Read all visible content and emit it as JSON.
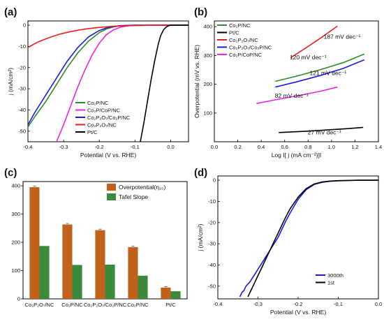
{
  "colors": {
    "green": "#2e8b2e",
    "magenta": "#ee22ee",
    "blue": "#1a1ae6",
    "red": "#ee1c1c",
    "black": "#000000",
    "bar_over": "#c1611b",
    "bar_tafel": "#3b8a3b"
  },
  "chart_data": [
    {
      "id": "a",
      "type": "line",
      "panel_label": "(a)",
      "xlabel": "Potential (V vs. RHE)",
      "ylabel": "j (mA/cm²)",
      "xlim": [
        -0.4,
        0.05
      ],
      "ylim": [
        -55,
        2
      ],
      "xticks": [
        -0.4,
        -0.3,
        -0.2,
        -0.1,
        0.0
      ],
      "xtick_labels": [
        "-0.4",
        "-0.3",
        "-0.2",
        "-0.1",
        "0.0"
      ],
      "yticks": [
        0,
        -10,
        -20,
        -30,
        -40,
        -50
      ],
      "ytick_labels": [
        "0",
        "-10",
        "-20",
        "-30",
        "-40",
        "-50"
      ],
      "legend_position": "bottom-right",
      "series": [
        {
          "name": "Co₂P/NC",
          "color": "green",
          "x": [
            -0.4,
            -0.38,
            -0.35,
            -0.32,
            -0.29,
            -0.26,
            -0.23,
            -0.2,
            -0.18,
            -0.16,
            -0.14,
            -0.12,
            -0.1,
            -0.08,
            -0.05,
            0.0,
            0.05
          ],
          "y": [
            -48,
            -43,
            -36,
            -28,
            -20,
            -13,
            -7.5,
            -3.5,
            -1.8,
            -0.8,
            -0.3,
            -0.1,
            0,
            0,
            0,
            0,
            0
          ]
        },
        {
          "name": "Co₂P/CoP/NC",
          "color": "magenta",
          "x": [
            -0.32,
            -0.3,
            -0.28,
            -0.26,
            -0.24,
            -0.22,
            -0.2,
            -0.18,
            -0.16,
            -0.14,
            -0.12,
            -0.1,
            -0.05,
            0.0,
            0.05
          ],
          "y": [
            -55,
            -47,
            -38,
            -29,
            -21,
            -14,
            -8.5,
            -4.5,
            -2.2,
            -0.9,
            -0.3,
            -0.1,
            0,
            0,
            0
          ]
        },
        {
          "name": "Co₂P₂O₇/Co₂P/NC",
          "color": "blue",
          "x": [
            -0.4,
            -0.38,
            -0.35,
            -0.32,
            -0.29,
            -0.26,
            -0.23,
            -0.2,
            -0.18,
            -0.16,
            -0.14,
            -0.12,
            -0.1,
            -0.05,
            0.0,
            0.05
          ],
          "y": [
            -47,
            -41,
            -33,
            -25,
            -17,
            -10.5,
            -5.5,
            -2.5,
            -1.3,
            -0.6,
            -0.2,
            -0.1,
            0,
            0,
            0,
            0
          ]
        },
        {
          "name": "Co₂P₂O₇/NC",
          "color": "red",
          "x": [
            -0.4,
            -0.37,
            -0.34,
            -0.31,
            -0.28,
            -0.25,
            -0.22,
            -0.19,
            -0.16,
            -0.13,
            -0.1,
            -0.07,
            -0.04,
            0.0,
            0.05
          ],
          "y": [
            -10.5,
            -7.8,
            -5.8,
            -4.2,
            -3.0,
            -2.1,
            -1.4,
            -0.9,
            -0.5,
            -0.3,
            -0.15,
            -0.05,
            0,
            0,
            0
          ]
        },
        {
          "name": "Pt/C",
          "color": "black",
          "x": [
            -0.085,
            -0.075,
            -0.065,
            -0.055,
            -0.045,
            -0.035,
            -0.028,
            -0.02,
            -0.012,
            -0.005,
            0.0,
            0.05
          ],
          "y": [
            -55,
            -46,
            -36,
            -26,
            -17,
            -9,
            -5,
            -2.2,
            -0.8,
            -0.2,
            0,
            0
          ]
        }
      ]
    },
    {
      "id": "b",
      "type": "line",
      "panel_label": "(b)",
      "xlabel": "Log I[ j (mA cm⁻²)]I",
      "ylabel": "Overpotential (mV vs. RHE)",
      "xlim": [
        0.0,
        1.4
      ],
      "ylim": [
        0,
        420
      ],
      "xticks": [
        0.0,
        0.2,
        0.4,
        0.6,
        0.8,
        1.0,
        1.2,
        1.4
      ],
      "xtick_labels": [
        "0.0",
        "0.2",
        "0.4",
        "0.6",
        "0.8",
        "1.0",
        "1.2",
        "1.4"
      ],
      "yticks": [
        100,
        200,
        300,
        400
      ],
      "ytick_labels": [
        "100",
        "200",
        "300",
        "400"
      ],
      "legend_position": "top-left",
      "series": [
        {
          "name": "Co₂P/NC",
          "color": "green",
          "x": [
            0.52,
            0.7,
            0.9,
            1.1,
            1.28
          ],
          "y": [
            210,
            228,
            250,
            275,
            305
          ]
        },
        {
          "name": "Pt/C",
          "color": "black",
          "x": [
            0.55,
            0.8,
            1.0,
            1.15,
            1.27
          ],
          "y": [
            32,
            37,
            42,
            46,
            50
          ]
        },
        {
          "name": "Co₂P₂O₇/NC",
          "color": "red",
          "x": [
            0.65,
            0.75,
            0.85,
            0.95,
            1.05
          ],
          "y": [
            292,
            318,
            345,
            373,
            402
          ]
        },
        {
          "name": "Co₂P₂O₇/Co₂P/NC",
          "color": "blue",
          "x": [
            0.52,
            0.7,
            0.9,
            1.1,
            1.28
          ],
          "y": [
            190,
            208,
            230,
            255,
            285
          ]
        },
        {
          "name": "Co₂P/CoP/NC",
          "color": "magenta",
          "x": [
            0.36,
            0.55,
            0.75,
            0.9,
            1.05
          ],
          "y": [
            133,
            148,
            163,
            175,
            190
          ]
        }
      ],
      "annotations": [
        {
          "text": "187 mV dec⁻¹",
          "x": 1.09,
          "y": 358
        },
        {
          "text": "120 mV dec⁻¹",
          "x": 0.8,
          "y": 287
        },
        {
          "text": "121 mV dec⁻¹",
          "x": 0.97,
          "y": 232
        },
        {
          "text": "82 mV dec⁻¹",
          "x": 0.66,
          "y": 153
        },
        {
          "text": "27 mV dec⁻¹",
          "x": 0.94,
          "y": 25
        }
      ]
    },
    {
      "id": "c",
      "type": "bar",
      "panel_label": "(c)",
      "ylim": [
        0,
        415
      ],
      "yticks": [
        0,
        100,
        200,
        300,
        400
      ],
      "ytick_labels": [
        "0",
        "100",
        "200",
        "300",
        "400"
      ],
      "legend_position": "top-right",
      "categories": [
        "Co₂P₂O₇/NC",
        "Co₂P/NC",
        "Co₂P₂O₇/Co₂P/NC",
        "Co₂P/NC",
        "Pt/C"
      ],
      "series": [
        {
          "name": "Overpotential(η₁₀)",
          "color": "bar_over",
          "values": [
            395,
            263,
            243,
            183,
            40
          ]
        },
        {
          "name": "Tafel Slope",
          "color": "bar_tafel",
          "values": [
            187,
            120,
            121,
            82,
            27
          ]
        }
      ]
    },
    {
      "id": "d",
      "type": "line",
      "panel_label": "(d)",
      "xlabel": "Potential (V vs. RHE)",
      "ylabel": "j (mA/cm²)",
      "xlim": [
        -0.4,
        0.0
      ],
      "ylim": [
        -56,
        2
      ],
      "xticks": [
        -0.4,
        -0.3,
        -0.2,
        -0.1,
        0.0
      ],
      "xtick_labels": [
        "-0.4",
        "-0.3",
        "-0.2",
        "-0.1",
        "0.0"
      ],
      "yticks": [
        0,
        -10,
        -20,
        -30,
        -40,
        -50
      ],
      "ytick_labels": [
        "0",
        "-10",
        "-20",
        "-30",
        "-40",
        "-50"
      ],
      "legend_position": "bottom-right",
      "series": [
        {
          "name": "3000th",
          "color": "blue",
          "x": [
            -0.345,
            -0.34,
            -0.335,
            -0.33,
            -0.32,
            -0.31,
            -0.3,
            -0.29,
            -0.28,
            -0.27,
            -0.26,
            -0.25,
            -0.24,
            -0.23,
            -0.22,
            -0.2,
            -0.18,
            -0.16,
            -0.14,
            -0.12,
            -0.1,
            -0.05,
            0.0
          ],
          "y": [
            -55,
            -53,
            -52,
            -50,
            -48,
            -45,
            -42,
            -39,
            -36,
            -33,
            -30,
            -27,
            -23,
            -19,
            -15.5,
            -9,
            -4.5,
            -2,
            -1,
            -0.5,
            -0.3,
            0,
            0
          ]
        },
        {
          "name": "1st",
          "color": "black",
          "x": [
            -0.325,
            -0.32,
            -0.31,
            -0.3,
            -0.29,
            -0.28,
            -0.27,
            -0.26,
            -0.25,
            -0.24,
            -0.23,
            -0.22,
            -0.2,
            -0.18,
            -0.16,
            -0.14,
            -0.12,
            -0.1,
            -0.05,
            0.0
          ],
          "y": [
            -55,
            -53,
            -49,
            -45,
            -41,
            -37,
            -33,
            -29,
            -25,
            -21,
            -17,
            -13.5,
            -8,
            -4,
            -1.8,
            -0.8,
            -0.4,
            -0.2,
            0,
            0
          ]
        }
      ]
    }
  ]
}
